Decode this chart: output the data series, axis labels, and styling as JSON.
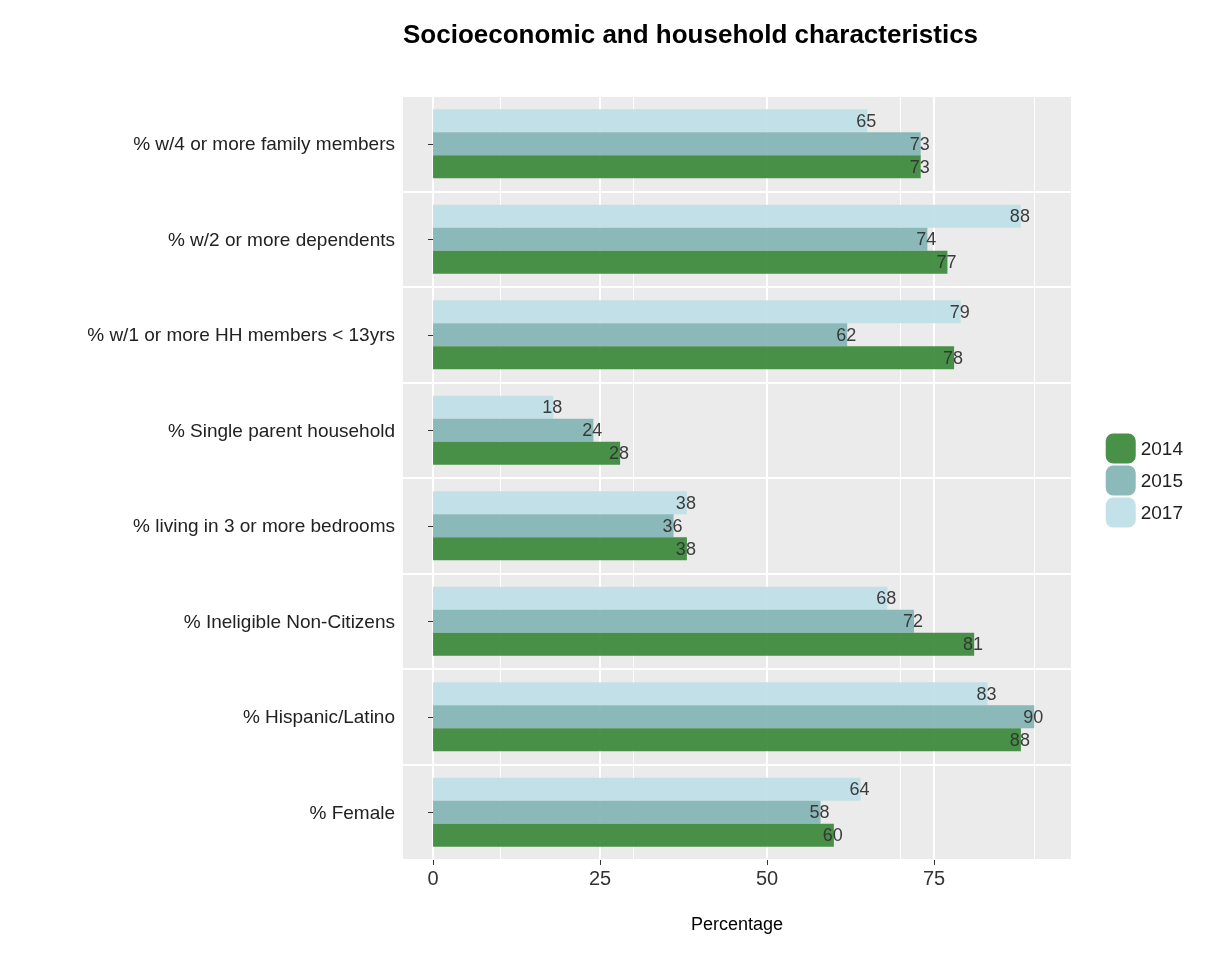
{
  "chart_data": {
    "type": "bar",
    "orientation": "horizontal",
    "title": "Socioeconomic and household characteristics",
    "xlabel": "Percentage",
    "categories": [
      "% w/4 or more family members",
      "% w/2 or more dependents",
      "% w/1 or more HH members < 13yrs",
      "% Single parent household",
      "% living in 3 or more bedrooms",
      "% Ineligible Non-Citizens",
      "% Hispanic/Latino",
      "% Female"
    ],
    "series": [
      {
        "name": "2014",
        "color": "#3f8a3f",
        "values": [
          73,
          77,
          78,
          28,
          38,
          81,
          88,
          60
        ]
      },
      {
        "name": "2015",
        "color": "#86b5b5",
        "values": [
          73,
          74,
          62,
          24,
          36,
          72,
          90,
          58
        ]
      },
      {
        "name": "2017",
        "color": "#c0dfe7",
        "values": [
          65,
          88,
          79,
          18,
          38,
          68,
          83,
          64
        ]
      }
    ],
    "xlim": [
      -4.5,
      95.5
    ],
    "xticks": [
      0,
      25,
      50,
      75
    ],
    "grid": true,
    "legend": "right",
    "data_labels": true
  }
}
